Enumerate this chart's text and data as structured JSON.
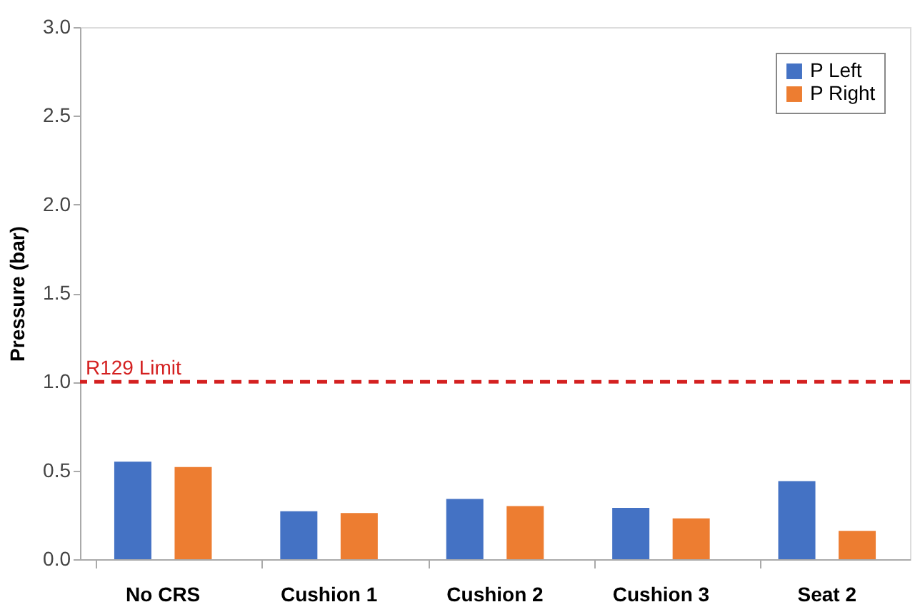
{
  "chart_data": {
    "type": "bar",
    "ylabel": "Pressure (bar)",
    "categories": [
      "No CRS",
      "Cushion 1",
      "Cushion 2",
      "Cushion 3",
      "Seat 2"
    ],
    "series": [
      {
        "name": "P Left",
        "color": "#4472c4",
        "values": [
          0.55,
          0.27,
          0.34,
          0.29,
          0.44
        ]
      },
      {
        "name": "P Right",
        "color": "#ed7d31",
        "values": [
          0.52,
          0.26,
          0.3,
          0.23,
          0.16
        ]
      }
    ],
    "ylim": [
      0,
      3.0
    ],
    "yticks": [
      {
        "value": 0,
        "label": "0.0"
      },
      {
        "value": 0.5,
        "label": "0.5"
      },
      {
        "value": 1,
        "label": "1.0"
      },
      {
        "value": 1.5,
        "label": "1.5"
      },
      {
        "value": 2,
        "label": "2.0"
      },
      {
        "value": 2.5,
        "label": "2.5"
      },
      {
        "value": 3,
        "label": "3.0"
      }
    ],
    "ref_lines": [
      {
        "axis": "y",
        "value": 1.0,
        "label": "R129 Limit",
        "color": "#d42020",
        "line_style": "dashed"
      }
    ],
    "grid": false,
    "legend": "top right"
  }
}
